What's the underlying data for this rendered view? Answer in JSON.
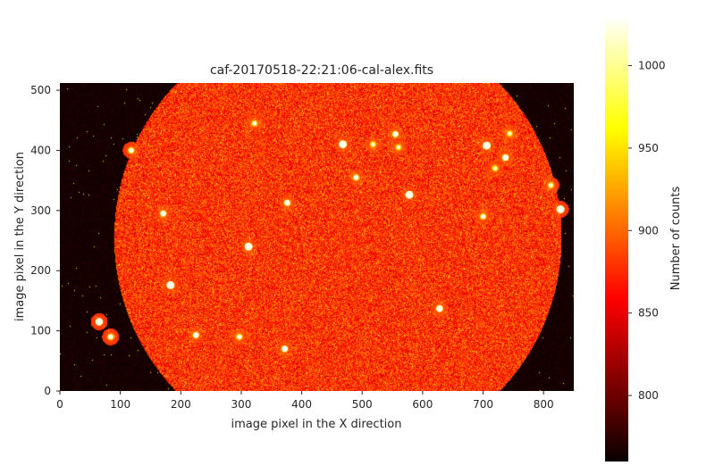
{
  "chart_data": {
    "type": "heatmap",
    "title": "caf-20170518-22:21:06-cal-alex.fits",
    "xlabel": "image pixel in the X direction",
    "ylabel": "image pixel in the Y direction",
    "xlim": [
      0,
      850
    ],
    "ylim": [
      0,
      512
    ],
    "xticks": [
      0,
      100,
      200,
      300,
      400,
      500,
      600,
      700,
      800
    ],
    "yticks": [
      0,
      100,
      200,
      300,
      400,
      500
    ],
    "colormap": "hot",
    "colorbar": {
      "label": "Number of counts",
      "range": [
        760,
        1030
      ],
      "ticks": [
        800,
        850,
        900,
        950,
        1000
      ]
    },
    "disk": {
      "center_x": 460,
      "center_y": 255,
      "radius": 370,
      "level": 880
    },
    "background_level": 765,
    "stars": [
      {
        "x": 468,
        "y": 410,
        "peak": 1030
      },
      {
        "x": 578,
        "y": 326,
        "peak": 1030
      },
      {
        "x": 706,
        "y": 408,
        "peak": 1030
      },
      {
        "x": 828,
        "y": 302,
        "peak": 1030
      },
      {
        "x": 183,
        "y": 176,
        "peak": 1030
      },
      {
        "x": 312,
        "y": 240,
        "peak": 1030
      },
      {
        "x": 65,
        "y": 115,
        "peak": 1020
      },
      {
        "x": 628,
        "y": 137,
        "peak": 1010
      },
      {
        "x": 737,
        "y": 388,
        "peak": 1000
      },
      {
        "x": 555,
        "y": 427,
        "peak": 990
      },
      {
        "x": 372,
        "y": 70,
        "peak": 1000
      },
      {
        "x": 376,
        "y": 313,
        "peak": 990
      },
      {
        "x": 171,
        "y": 295,
        "peak": 990
      },
      {
        "x": 490,
        "y": 355,
        "peak": 980
      },
      {
        "x": 118,
        "y": 400,
        "peak": 980
      },
      {
        "x": 225,
        "y": 93,
        "peak": 990
      },
      {
        "x": 84,
        "y": 90,
        "peak": 980
      },
      {
        "x": 297,
        "y": 90,
        "peak": 970
      },
      {
        "x": 700,
        "y": 290,
        "peak": 970
      },
      {
        "x": 322,
        "y": 445,
        "peak": 960
      },
      {
        "x": 812,
        "y": 342,
        "peak": 960
      },
      {
        "x": 744,
        "y": 428,
        "peak": 950
      },
      {
        "x": 720,
        "y": 370,
        "peak": 950
      },
      {
        "x": 560,
        "y": 405,
        "peak": 950
      },
      {
        "x": 518,
        "y": 410,
        "peak": 950
      }
    ]
  }
}
